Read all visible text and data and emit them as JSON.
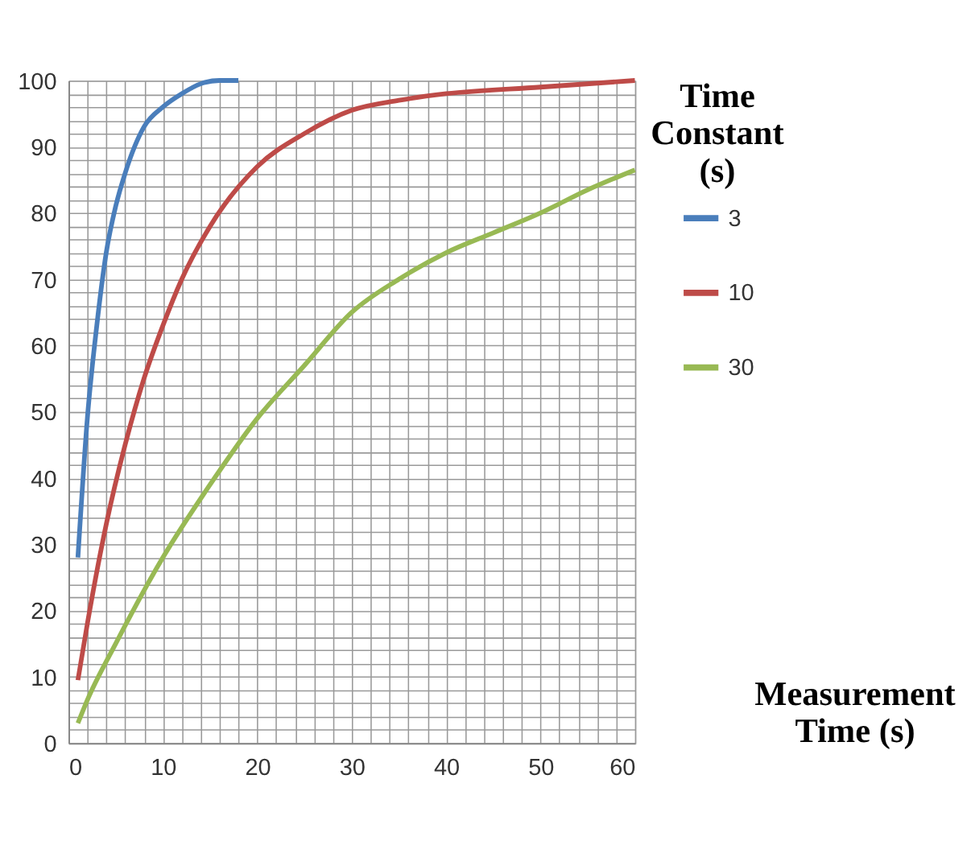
{
  "chart_data": {
    "type": "line",
    "xlabel": "Measurement Time (s)",
    "legend_title": "Time Constant (s)",
    "legend": "right",
    "xlim": [
      0,
      60
    ],
    "ylim": [
      0,
      100
    ],
    "grid": true,
    "xticks": [
      0,
      {
        "value": 2,
        "label": null
      },
      {
        "value": 4,
        "label": null
      },
      {
        "value": 6,
        "label": null
      },
      {
        "value": 8,
        "label": null
      },
      10,
      {
        "value": 12,
        "label": null
      },
      {
        "value": 14,
        "label": null
      },
      {
        "value": 16,
        "label": null
      },
      {
        "value": 18,
        "label": null
      },
      20,
      {
        "value": 22,
        "label": null
      },
      {
        "value": 24,
        "label": null
      },
      {
        "value": 26,
        "label": null
      },
      {
        "value": 28,
        "label": null
      },
      30,
      {
        "value": 32,
        "label": null
      },
      {
        "value": 34,
        "label": null
      },
      {
        "value": 36,
        "label": null
      },
      {
        "value": 38,
        "label": null
      },
      40,
      {
        "value": 42,
        "label": null
      },
      {
        "value": 44,
        "label": null
      },
      {
        "value": 46,
        "label": null
      },
      {
        "value": 48,
        "label": null
      },
      50,
      {
        "value": 52,
        "label": null
      },
      {
        "value": 54,
        "label": null
      },
      {
        "value": 56,
        "label": null
      },
      {
        "value": 58,
        "label": null
      },
      60
    ],
    "yticks": [
      0,
      {
        "value": 2,
        "label": null
      },
      {
        "value": 4,
        "label": null
      },
      {
        "value": 6,
        "label": null
      },
      {
        "value": 8,
        "label": null
      },
      10,
      {
        "value": 12,
        "label": null
      },
      {
        "value": 14,
        "label": null
      },
      {
        "value": 16,
        "label": null
      },
      {
        "value": 18,
        "label": null
      },
      20,
      {
        "value": 22,
        "label": null
      },
      {
        "value": 24,
        "label": null
      },
      {
        "value": 26,
        "label": null
      },
      {
        "value": 28,
        "label": null
      },
      30,
      {
        "value": 32,
        "label": null
      },
      {
        "value": 34,
        "label": null
      },
      {
        "value": 36,
        "label": null
      },
      {
        "value": 38,
        "label": null
      },
      40,
      {
        "value": 42,
        "label": null
      },
      {
        "value": 44,
        "label": null
      },
      {
        "value": 46,
        "label": null
      },
      {
        "value": 48,
        "label": null
      },
      50,
      {
        "value": 52,
        "label": null
      },
      {
        "value": 54,
        "label": null
      },
      {
        "value": 56,
        "label": null
      },
      {
        "value": 58,
        "label": null
      },
      60,
      {
        "value": 62,
        "label": null
      },
      {
        "value": 64,
        "label": null
      },
      {
        "value": 66,
        "label": null
      },
      {
        "value": 68,
        "label": null
      },
      70,
      {
        "value": 72,
        "label": null
      },
      {
        "value": 74,
        "label": null
      },
      {
        "value": 76,
        "label": null
      },
      {
        "value": 78,
        "label": null
      },
      80,
      {
        "value": 82,
        "label": null
      },
      {
        "value": 84,
        "label": null
      },
      {
        "value": 86,
        "label": null
      },
      {
        "value": 88,
        "label": null
      },
      90,
      {
        "value": 92,
        "label": null
      },
      {
        "value": 94,
        "label": null
      },
      {
        "value": 96,
        "label": null
      },
      {
        "value": 98,
        "label": null
      },
      100
    ],
    "series": [
      {
        "name": "3",
        "color": "#4a7ebb",
        "x": [
          1,
          2,
          3,
          4,
          5,
          6,
          8,
          10,
          12,
          14,
          16,
          18
        ],
        "values": [
          28,
          49,
          63,
          74,
          81,
          86,
          93,
          96,
          98,
          99.5,
          100,
          100
        ]
      },
      {
        "name": "10",
        "color": "#be4b48",
        "x": [
          1,
          2,
          4,
          6,
          8,
          10,
          12,
          15,
          20,
          25,
          30,
          35,
          40,
          50,
          60
        ],
        "values": [
          9.5,
          18,
          33,
          45,
          55,
          63,
          70,
          78,
          87,
          92,
          95.5,
          97,
          98,
          99,
          100
        ]
      },
      {
        "name": "30",
        "color": "#98b954",
        "x": [
          1,
          2,
          5,
          10,
          15,
          20,
          25,
          30,
          35,
          40,
          45,
          50,
          55,
          60
        ],
        "values": [
          3,
          6.5,
          15,
          28,
          39,
          49,
          57,
          65,
          70,
          74,
          77,
          80,
          83.5,
          86.5
        ]
      }
    ]
  }
}
